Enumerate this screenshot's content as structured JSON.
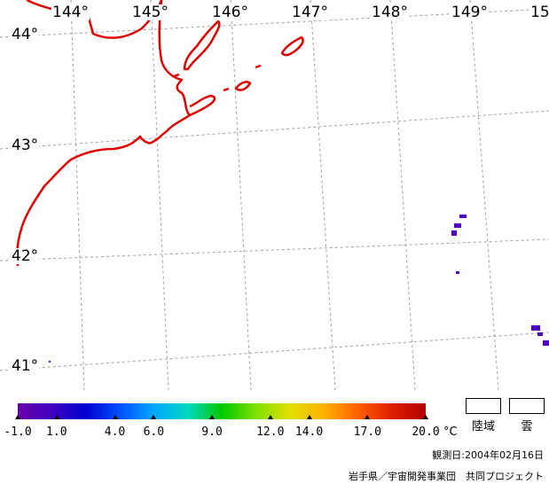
{
  "map": {
    "lon_labels": [
      "144°",
      "145°",
      "146°",
      "147°",
      "148°",
      "149°",
      "15"
    ],
    "lat_labels": [
      "44°",
      "43°",
      "42°",
      "41°"
    ],
    "colors": {
      "coastline": "#e00000",
      "graticule": "#a0a0a0",
      "cloud_pixels": "#5000c0"
    }
  },
  "colorbar": {
    "gradient": [
      "#6a00a8",
      "#4000c0",
      "#0000d0",
      "#0050ff",
      "#00a8ff",
      "#00d8c0",
      "#00c800",
      "#80e000",
      "#e0e000",
      "#ffb000",
      "#ff6000",
      "#e02000",
      "#b00000"
    ],
    "ticks": [
      {
        "label": "-1.0",
        "value": -1.0
      },
      {
        "label": "1.0",
        "value": 1.0
      },
      {
        "label": "4.0",
        "value": 4.0
      },
      {
        "label": "6.0",
        "value": 6.0
      },
      {
        "label": "9.0",
        "value": 9.0
      },
      {
        "label": "12.0",
        "value": 12.0
      },
      {
        "label": "14.0",
        "value": 14.0
      },
      {
        "label": "17.0",
        "value": 17.0
      },
      {
        "label": "20.0",
        "value": 20.0
      }
    ],
    "range": [
      -1.0,
      20.0
    ],
    "unit": "°C"
  },
  "legend": {
    "land_label": "陸域",
    "cloud_label": "雲"
  },
  "observation_date": "観測日:2004年02月16日",
  "credit": "岩手県／宇宙開発事業団　共同プロジェクト"
}
